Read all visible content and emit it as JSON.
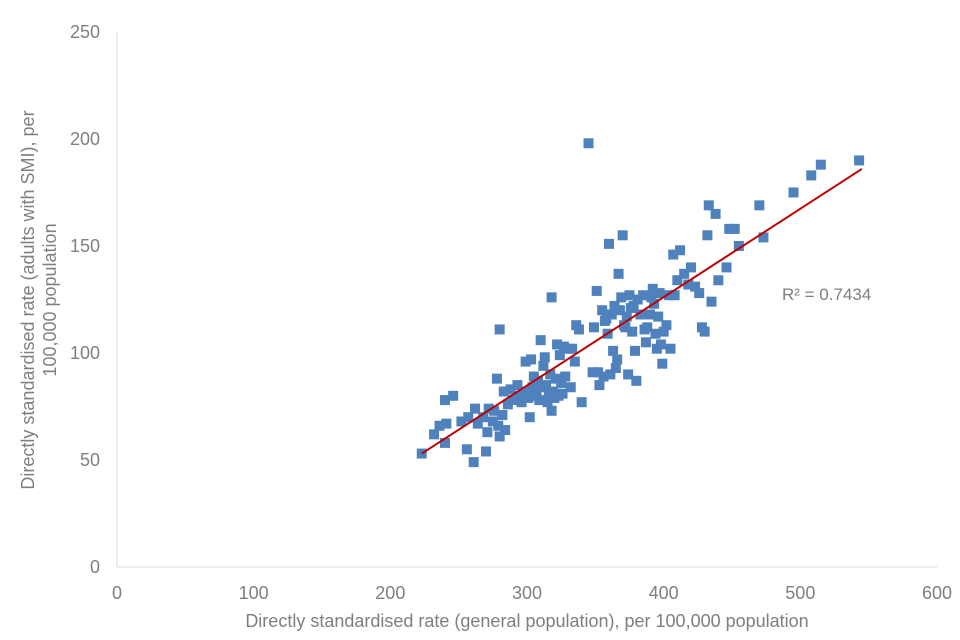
{
  "chart_data": {
    "type": "scatter",
    "title": "",
    "xlabel": "Directly standardised rate (general population), per 100,000 population",
    "ylabel_line1": "Directly standardised rate (adults with SMI), per",
    "ylabel_line2": "100,000 population",
    "xlim": [
      0,
      600
    ],
    "ylim": [
      0,
      250
    ],
    "xticks": [
      0,
      100,
      200,
      300,
      400,
      500,
      600
    ],
    "yticks": [
      0,
      50,
      100,
      150,
      200,
      250
    ],
    "grid": false,
    "legend": "none",
    "marker_color": "#4f81bd",
    "trendline": {
      "type": "linear",
      "color": "#c00000",
      "x_start": 223,
      "y_start": 53,
      "x_end": 545,
      "y_end": 186,
      "r_squared_label": "R² = 0.7434"
    },
    "series": [
      {
        "points": [
          [
            223,
            53
          ],
          [
            232,
            62
          ],
          [
            236,
            66
          ],
          [
            240,
            58
          ],
          [
            240,
            78
          ],
          [
            241,
            67
          ],
          [
            246,
            80
          ],
          [
            252,
            68
          ],
          [
            256,
            55
          ],
          [
            257,
            70
          ],
          [
            261,
            49
          ],
          [
            262,
            74
          ],
          [
            264,
            67
          ],
          [
            268,
            70
          ],
          [
            270,
            54
          ],
          [
            271,
            63
          ],
          [
            272,
            74
          ],
          [
            275,
            68
          ],
          [
            276,
            73
          ],
          [
            278,
            88
          ],
          [
            279,
            66
          ],
          [
            280,
            61
          ],
          [
            280,
            111
          ],
          [
            282,
            71
          ],
          [
            283,
            82
          ],
          [
            284,
            64
          ],
          [
            286,
            76
          ],
          [
            288,
            83
          ],
          [
            290,
            78
          ],
          [
            292,
            80
          ],
          [
            293,
            85
          ],
          [
            295,
            79
          ],
          [
            296,
            77
          ],
          [
            298,
            82
          ],
          [
            299,
            96
          ],
          [
            300,
            81
          ],
          [
            301,
            79
          ],
          [
            302,
            70
          ],
          [
            303,
            97
          ],
          [
            304,
            84
          ],
          [
            305,
            89
          ],
          [
            306,
            82
          ],
          [
            307,
            80
          ],
          [
            308,
            87
          ],
          [
            309,
            78
          ],
          [
            310,
            106
          ],
          [
            311,
            84
          ],
          [
            312,
            94
          ],
          [
            313,
            98
          ],
          [
            314,
            85
          ],
          [
            315,
            77
          ],
          [
            316,
            81
          ],
          [
            317,
            90
          ],
          [
            318,
            126
          ],
          [
            318,
            73
          ],
          [
            319,
            82
          ],
          [
            320,
            79
          ],
          [
            321,
            88
          ],
          [
            322,
            104
          ],
          [
            323,
            80
          ],
          [
            324,
            99
          ],
          [
            325,
            86
          ],
          [
            326,
            81
          ],
          [
            327,
            103
          ],
          [
            328,
            89
          ],
          [
            330,
            102
          ],
          [
            332,
            84
          ],
          [
            333,
            102
          ],
          [
            335,
            96
          ],
          [
            336,
            113
          ],
          [
            338,
            111
          ],
          [
            340,
            77
          ],
          [
            345,
            198
          ],
          [
            348,
            91
          ],
          [
            349,
            112
          ],
          [
            351,
            129
          ],
          [
            352,
            91
          ],
          [
            353,
            85
          ],
          [
            355,
            120
          ],
          [
            356,
            89
          ],
          [
            357,
            115
          ],
          [
            358,
            116
          ],
          [
            359,
            109
          ],
          [
            360,
            151
          ],
          [
            361,
            90
          ],
          [
            362,
            118
          ],
          [
            363,
            101
          ],
          [
            364,
            122
          ],
          [
            365,
            93
          ],
          [
            366,
            97
          ],
          [
            367,
            137
          ],
          [
            368,
            120
          ],
          [
            369,
            126
          ],
          [
            370,
            155
          ],
          [
            371,
            113
          ],
          [
            372,
            112
          ],
          [
            373,
            117
          ],
          [
            374,
            90
          ],
          [
            375,
            127
          ],
          [
            376,
            121
          ],
          [
            377,
            110
          ],
          [
            378,
            122
          ],
          [
            379,
            101
          ],
          [
            380,
            87
          ],
          [
            381,
            125
          ],
          [
            383,
            118
          ],
          [
            385,
            127
          ],
          [
            386,
            111
          ],
          [
            387,
            105
          ],
          [
            388,
            112
          ],
          [
            390,
            118
          ],
          [
            391,
            126
          ],
          [
            392,
            130
          ],
          [
            393,
            123
          ],
          [
            394,
            109
          ],
          [
            395,
            102
          ],
          [
            396,
            117
          ],
          [
            397,
            128
          ],
          [
            398,
            104
          ],
          [
            399,
            95
          ],
          [
            400,
            110
          ],
          [
            402,
            113
          ],
          [
            404,
            127
          ],
          [
            405,
            102
          ],
          [
            407,
            146
          ],
          [
            408,
            127
          ],
          [
            410,
            134
          ],
          [
            412,
            148
          ],
          [
            415,
            137
          ],
          [
            418,
            132
          ],
          [
            420,
            140
          ],
          [
            423,
            131
          ],
          [
            426,
            128
          ],
          [
            428,
            112
          ],
          [
            430,
            110
          ],
          [
            432,
            155
          ],
          [
            433,
            169
          ],
          [
            435,
            124
          ],
          [
            438,
            165
          ],
          [
            440,
            134
          ],
          [
            446,
            140
          ],
          [
            448,
            158
          ],
          [
            452,
            158
          ],
          [
            455,
            150
          ],
          [
            470,
            169
          ],
          [
            473,
            154
          ],
          [
            495,
            175
          ],
          [
            508,
            183
          ],
          [
            515,
            188
          ],
          [
            543,
            190
          ]
        ]
      }
    ]
  }
}
